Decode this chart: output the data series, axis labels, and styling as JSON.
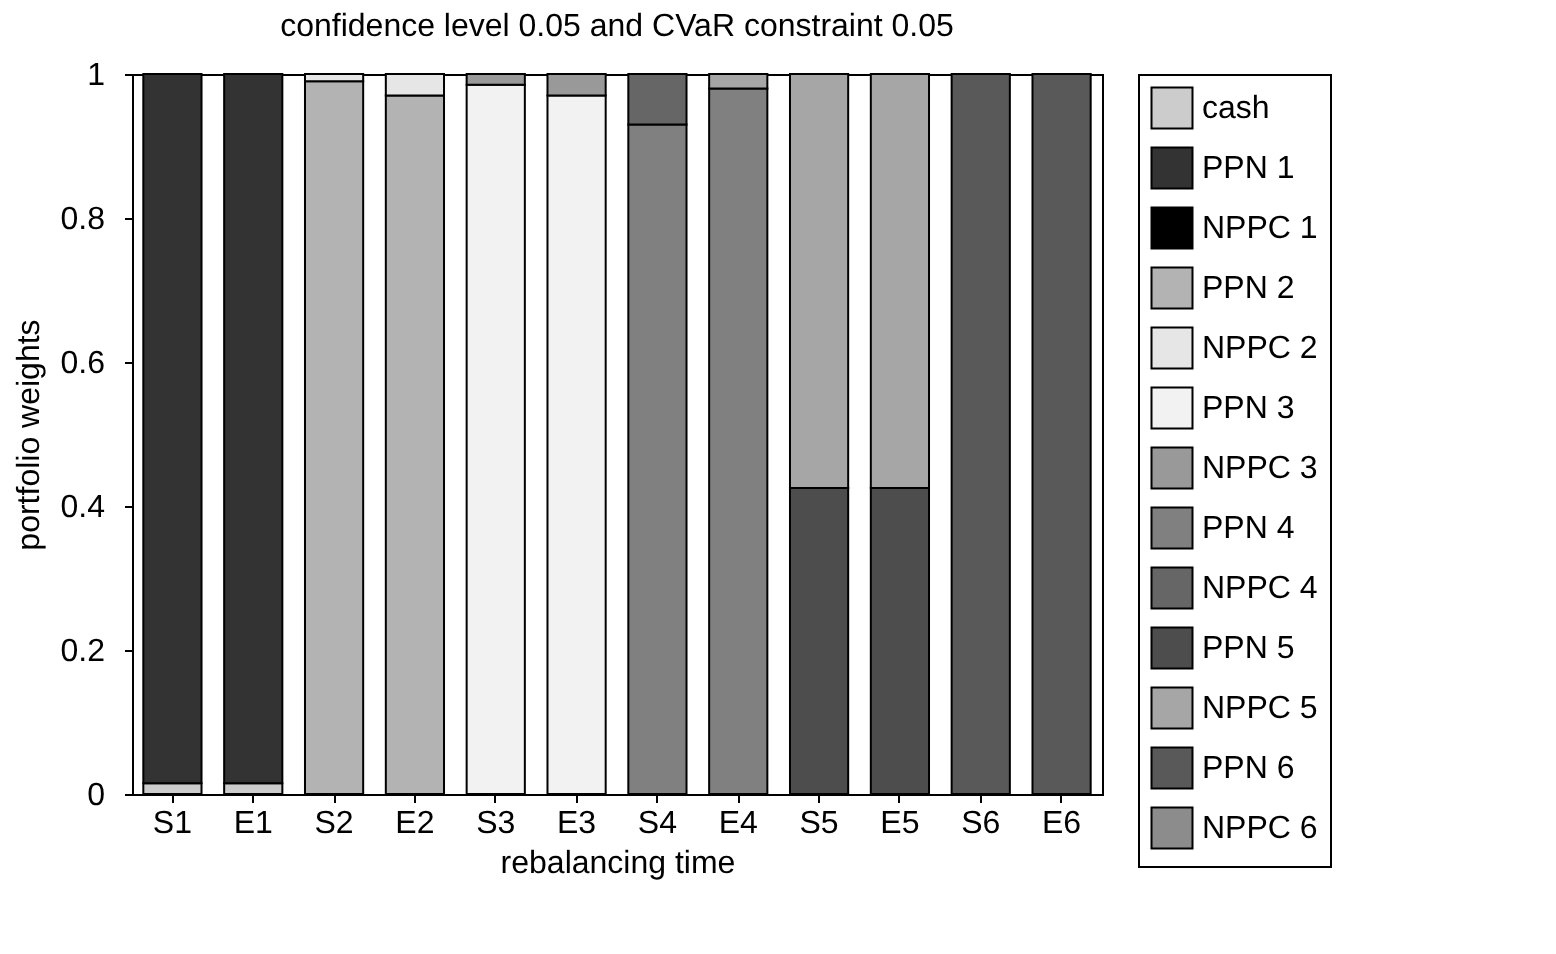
{
  "chart_data": {
    "type": "bar",
    "stacked": true,
    "title": "confidence level 0.05 and CVaR constraint 0.05",
    "xlabel": "rebalancing time",
    "ylabel": "portfolio weights",
    "categories": [
      "S1",
      "E1",
      "S2",
      "E2",
      "S3",
      "E3",
      "S4",
      "E4",
      "S5",
      "E5",
      "S6",
      "E6"
    ],
    "ylim": [
      0,
      1
    ],
    "yticks": [
      0,
      0.2,
      0.4,
      0.6,
      0.8,
      1
    ],
    "grid": false,
    "legend": "right",
    "series": [
      {
        "name": "cash",
        "color": "#cccccc",
        "values": [
          0.015,
          0.015,
          null,
          null,
          null,
          null,
          null,
          null,
          null,
          null,
          null,
          null
        ]
      },
      {
        "name": "PPN 1",
        "color": "#333333",
        "values": [
          0.985,
          0.985,
          null,
          null,
          null,
          null,
          null,
          null,
          null,
          null,
          null,
          null
        ]
      },
      {
        "name": "NPPC 1",
        "color": "#000000",
        "values": [
          null,
          null,
          null,
          null,
          null,
          null,
          null,
          null,
          null,
          null,
          null,
          null
        ]
      },
      {
        "name": "PPN 2",
        "color": "#b3b3b3",
        "values": [
          null,
          null,
          0.99,
          0.97,
          null,
          null,
          null,
          null,
          null,
          null,
          null,
          null
        ]
      },
      {
        "name": "NPPC 2",
        "color": "#e6e6e6",
        "values": [
          null,
          null,
          0.01,
          0.03,
          null,
          null,
          null,
          null,
          null,
          null,
          null,
          null
        ]
      },
      {
        "name": "PPN 3",
        "color": "#f2f2f2",
        "values": [
          null,
          null,
          null,
          null,
          0.985,
          0.97,
          null,
          null,
          null,
          null,
          null,
          null
        ]
      },
      {
        "name": "NPPC 3",
        "color": "#999999",
        "values": [
          null,
          null,
          null,
          null,
          0.015,
          0.03,
          null,
          null,
          null,
          null,
          null,
          null
        ]
      },
      {
        "name": "PPN 4",
        "color": "#808080",
        "values": [
          null,
          null,
          null,
          null,
          null,
          null,
          0.93,
          0.98,
          null,
          null,
          null,
          null
        ]
      },
      {
        "name": "NPPC 4",
        "color": "#666666",
        "values": [
          null,
          null,
          null,
          null,
          null,
          null,
          0.07,
          null,
          null,
          null,
          null,
          null
        ]
      },
      {
        "name": "PPN 5",
        "color": "#4d4d4d",
        "values": [
          null,
          null,
          null,
          null,
          null,
          null,
          null,
          null,
          0.425,
          0.425,
          null,
          null
        ]
      },
      {
        "name": "NPPC 5",
        "color": "#a6a6a6",
        "values": [
          null,
          null,
          null,
          null,
          null,
          null,
          null,
          0.02,
          0.575,
          0.575,
          null,
          null
        ]
      },
      {
        "name": "PPN 6",
        "color": "#595959",
        "values": [
          null,
          null,
          null,
          null,
          null,
          null,
          null,
          null,
          null,
          null,
          1,
          1
        ]
      },
      {
        "name": "NPPC 6",
        "color": "#8c8c8c",
        "values": [
          null,
          null,
          null,
          null,
          null,
          null,
          null,
          null,
          null,
          null,
          null,
          null
        ]
      }
    ]
  }
}
